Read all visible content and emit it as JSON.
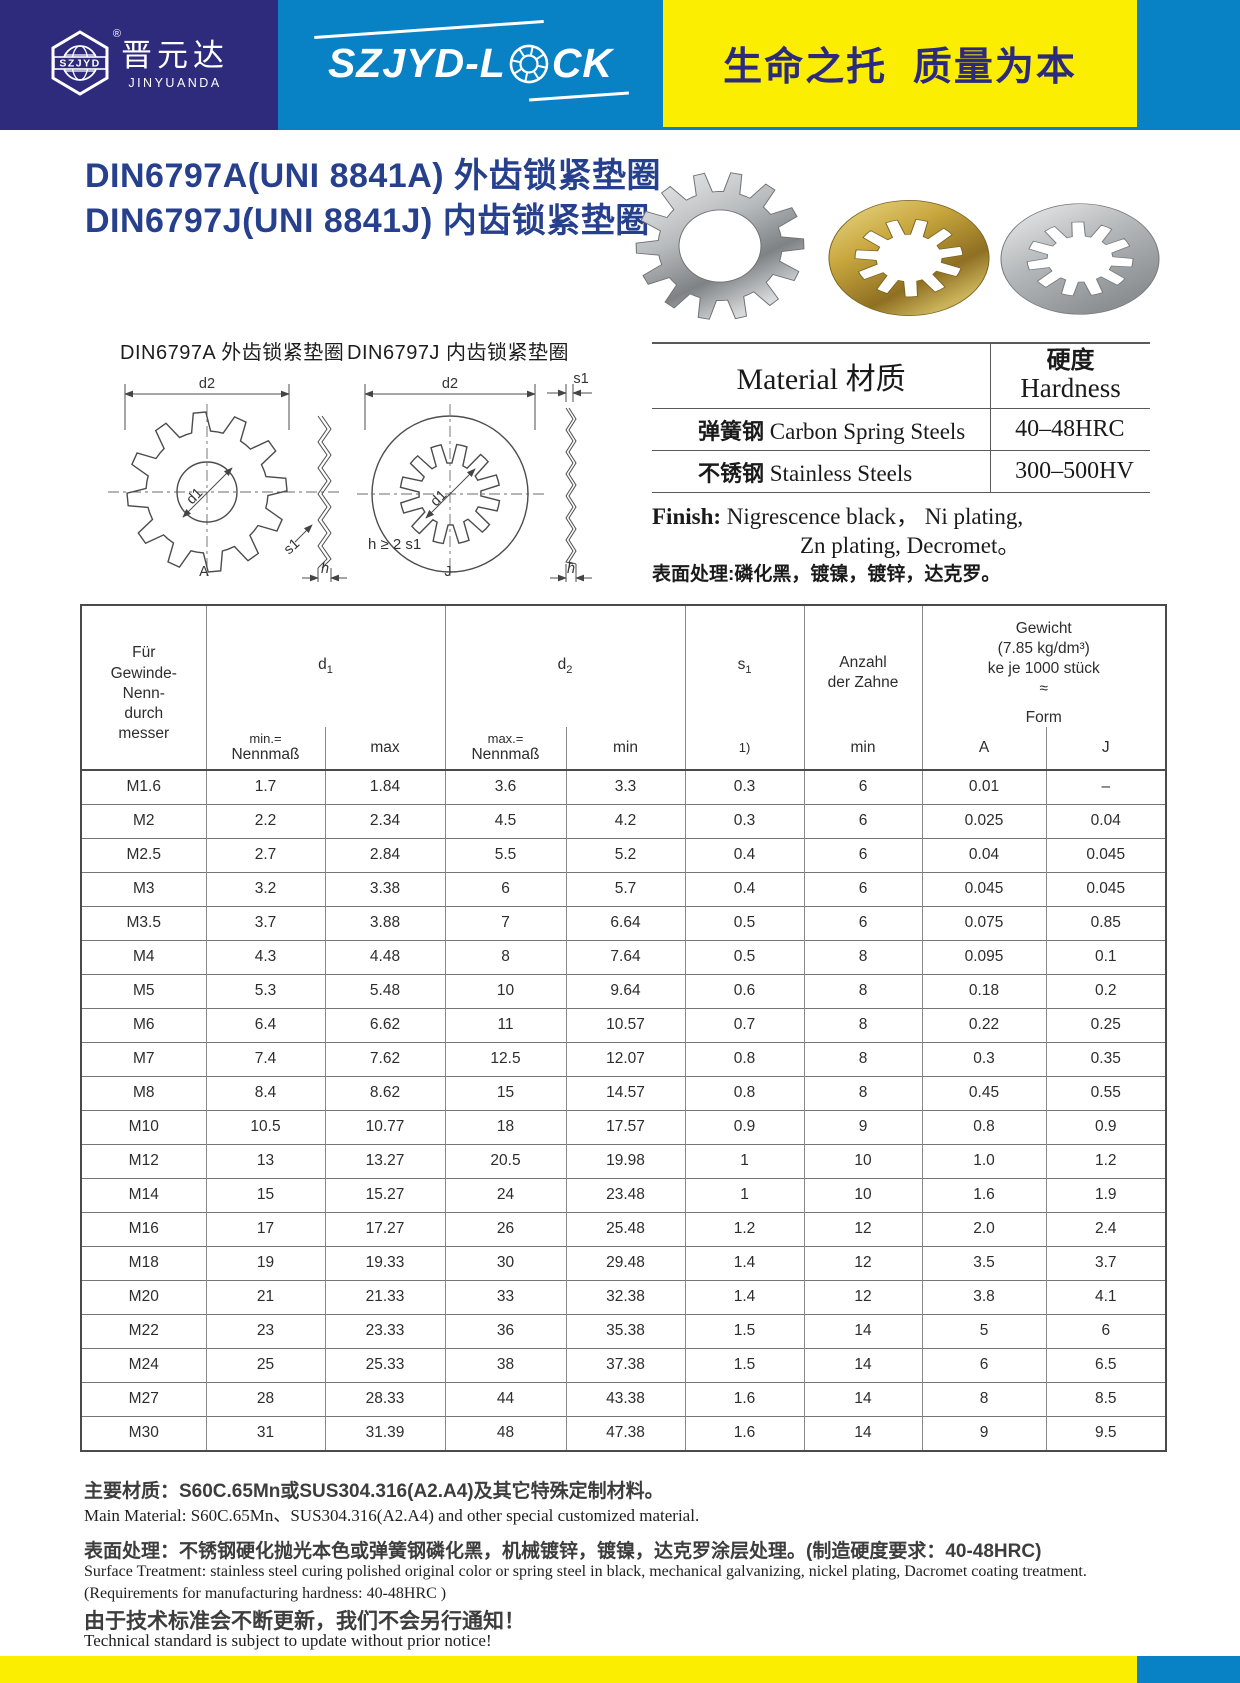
{
  "colors": {
    "navy": "#2e2a7c",
    "blue": "#0981c5",
    "yellow": "#fcee00",
    "title_blue": "#26408e",
    "slogan_navy": "#2b2a7d"
  },
  "header": {
    "logo": {
      "abbr": "SZJYD",
      "reg": "®",
      "name_cn": "晋元达",
      "name_en": "JINYUANDA"
    },
    "brand": {
      "pre": "SZJYD-L",
      "post": "CK"
    },
    "slogan": "生命之托  质量为本"
  },
  "title": {
    "line1": "DIN6797A(UNI 8841A) 外齿锁紧垫圈",
    "line2": "DIN6797J(UNI 8841J)  内齿锁紧垫圈"
  },
  "drawings": {
    "a_label": "DIN6797A 外齿锁紧垫圈",
    "j_label": "DIN6797J 内齿锁紧垫圈",
    "dims": {
      "d1": "d1",
      "d2": "d2",
      "s1": "s1",
      "h": "h",
      "form_a": "A",
      "form_j": "J",
      "h_rule": "h ≥ 2 s1"
    }
  },
  "material_table": {
    "col1_header": "Material  材质",
    "col2_header_cn": "硬度",
    "col2_header_en": "Hardness",
    "rows": [
      {
        "cn": "弹簧钢",
        "en": " Carbon Spring  Steels",
        "hardness": "40–48HRC"
      },
      {
        "cn": "不锈钢",
        "en": " Stainless Steels",
        "hardness": "300–500HV"
      }
    ],
    "finish_label": "Finish:",
    "finish_line1": " Nigrescence black，  Ni plating,",
    "finish_line2": "Zn plating,  Decromet。",
    "finish_cn": "表面处理:磷化黑，镀镍，镀锌，达克罗。"
  },
  "spec_table": {
    "headers": {
      "fur_lines": [
        "Für",
        "Gewinde-",
        "Nenn-",
        "durch",
        "messer"
      ],
      "d1_base": "d",
      "d1_sub": "1",
      "d2_base": "d",
      "d2_sub": "2",
      "s1_base": "s",
      "s1_sub": "1",
      "anzahl_lines": [
        "Anzahl",
        "der Zahne"
      ],
      "gewicht_lines": [
        "Gewicht",
        "(7.85 kg/dm³)",
        "ke je 1000 stück",
        "≈"
      ],
      "form": "Form",
      "min_eq": "min.=",
      "nennmass": "Nennmaß",
      "max": "max",
      "max_eq": "max.=",
      "min": "min",
      "note": "1)",
      "form_a": "A",
      "form_j": "J"
    },
    "rows": [
      [
        "M1.6",
        "1.7",
        "1.84",
        "3.6",
        "3.3",
        "0.3",
        "6",
        "0.01",
        "–"
      ],
      [
        "M2",
        "2.2",
        "2.34",
        "4.5",
        "4.2",
        "0.3",
        "6",
        "0.025",
        "0.04"
      ],
      [
        "M2.5",
        "2.7",
        "2.84",
        "5.5",
        "5.2",
        "0.4",
        "6",
        "0.04",
        "0.045"
      ],
      [
        "M3",
        "3.2",
        "3.38",
        "6",
        "5.7",
        "0.4",
        "6",
        "0.045",
        "0.045"
      ],
      [
        "M3.5",
        "3.7",
        "3.88",
        "7",
        "6.64",
        "0.5",
        "6",
        "0.075",
        "0.85"
      ],
      [
        "M4",
        "4.3",
        "4.48",
        "8",
        "7.64",
        "0.5",
        "8",
        "0.095",
        "0.1"
      ],
      [
        "M5",
        "5.3",
        "5.48",
        "10",
        "9.64",
        "0.6",
        "8",
        "0.18",
        "0.2"
      ],
      [
        "M6",
        "6.4",
        "6.62",
        "11",
        "10.57",
        "0.7",
        "8",
        "0.22",
        "0.25"
      ],
      [
        "M7",
        "7.4",
        "7.62",
        "12.5",
        "12.07",
        "0.8",
        "8",
        "0.3",
        "0.35"
      ],
      [
        "M8",
        "8.4",
        "8.62",
        "15",
        "14.57",
        "0.8",
        "8",
        "0.45",
        "0.55"
      ],
      [
        "M10",
        "10.5",
        "10.77",
        "18",
        "17.57",
        "0.9",
        "9",
        "0.8",
        "0.9"
      ],
      [
        "M12",
        "13",
        "13.27",
        "20.5",
        "19.98",
        "1",
        "10",
        "1.0",
        "1.2"
      ],
      [
        "M14",
        "15",
        "15.27",
        "24",
        "23.48",
        "1",
        "10",
        "1.6",
        "1.9"
      ],
      [
        "M16",
        "17",
        "17.27",
        "26",
        "25.48",
        "1.2",
        "12",
        "2.0",
        "2.4"
      ],
      [
        "M18",
        "19",
        "19.33",
        "30",
        "29.48",
        "1.4",
        "12",
        "3.5",
        "3.7"
      ],
      [
        "M20",
        "21",
        "21.33",
        "33",
        "32.38",
        "1.4",
        "12",
        "3.8",
        "4.1"
      ],
      [
        "M22",
        "23",
        "23.33",
        "36",
        "35.38",
        "1.5",
        "14",
        "5",
        "6"
      ],
      [
        "M24",
        "25",
        "25.33",
        "38",
        "37.38",
        "1.5",
        "14",
        "6",
        "6.5"
      ],
      [
        "M27",
        "28",
        "28.33",
        "44",
        "43.38",
        "1.6",
        "14",
        "8",
        "8.5"
      ],
      [
        "M30",
        "31",
        "31.39",
        "48",
        "47.38",
        "1.6",
        "14",
        "9",
        "9.5"
      ]
    ]
  },
  "notes": {
    "cn_material": "主要材质：S60C.65Mn或SUS304.316(A2.A4)及其它特殊定制材料。",
    "en_material": "Main Material: S60C.65Mn、SUS304.316(A2.A4) and other special customized material.",
    "cn_surface": "表面处理：不锈钢硬化抛光本色或弹簧钢磷化黑，机械镀锌，镀镍，达克罗涂层处理。(制造硬度要求：40-48HRC)",
    "en_surface": "Surface Treatment: stainless steel curing polished original color or spring steel in black, mechanical galvanizing, nickel plating, Dacromet coating treatment.",
    "en_surface2": "(Requirements for manufacturing hardness: 40-48HRC )",
    "cn_update": "由于技术标准会不断更新，我们不会另行通知！",
    "en_update": "Technical standard is subject to update without prior notice!"
  }
}
